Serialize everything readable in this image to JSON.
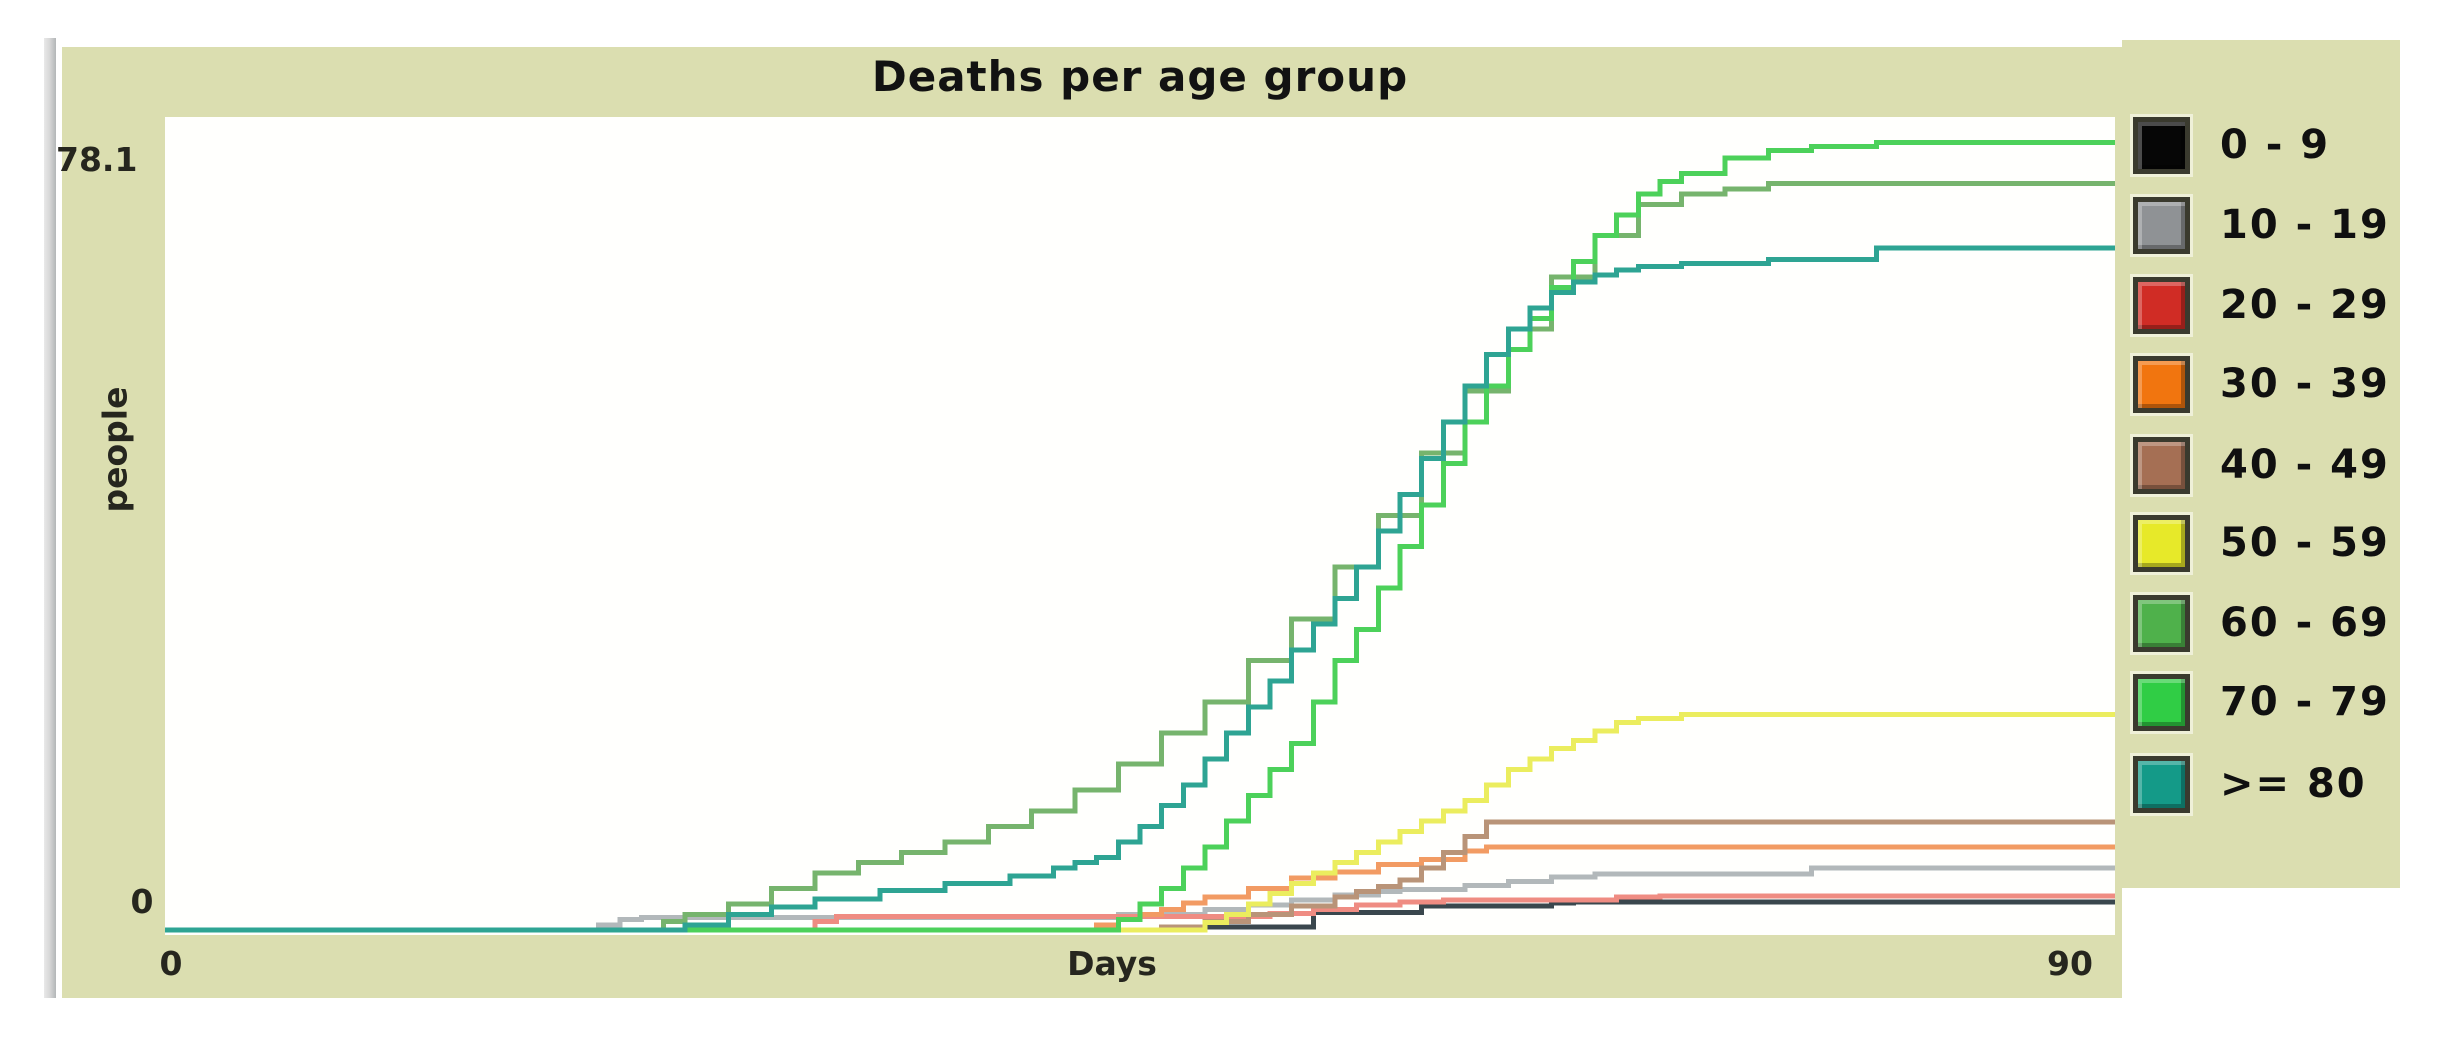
{
  "accent": {
    "panel_bg": "#dbdeb0",
    "plot_bg": "#fffffd",
    "scrollbar_gray": "#c6c8ca",
    "text_color": "#1a1a1a"
  },
  "chart_data": {
    "type": "line",
    "title": "Deaths per age group",
    "xlabel": "Days",
    "ylabel": "people",
    "xlim": [
      0,
      90
    ],
    "ylim": [
      0,
      78.1
    ],
    "x_axis": {
      "min_label": "0",
      "max_label": "90"
    },
    "y_axis": {
      "min_label": "0",
      "max_label": "78.1"
    },
    "grid": false,
    "legend_position": "right",
    "line_style": "step-after",
    "series": [
      {
        "name": "0 - 9",
        "swatch": "#060606",
        "line": "#3a474d",
        "points": [
          [
            0,
            0
          ],
          [
            48,
            0.3
          ],
          [
            53,
            1.7
          ],
          [
            58,
            2.3
          ],
          [
            64,
            2.6
          ],
          [
            65,
            2.7
          ],
          [
            90,
            2.7
          ]
        ]
      },
      {
        "name": "10 - 19",
        "swatch": "#8f9295",
        "line": "#b2b8ba",
        "points": [
          [
            0,
            0
          ],
          [
            20,
            0.5
          ],
          [
            21,
            1
          ],
          [
            22,
            1.2
          ],
          [
            44,
            1.5
          ],
          [
            48,
            2
          ],
          [
            50,
            2.4
          ],
          [
            52,
            2.9
          ],
          [
            54,
            3.4
          ],
          [
            56,
            3.7
          ],
          [
            57,
            3.9
          ],
          [
            60,
            4.3
          ],
          [
            62,
            4.7
          ],
          [
            64,
            5.1
          ],
          [
            66,
            5.4
          ],
          [
            76,
            6
          ],
          [
            90,
            6
          ]
        ]
      },
      {
        "name": "20 - 29",
        "swatch": "#d02c25",
        "line": "#ef8c82",
        "points": [
          [
            0,
            0
          ],
          [
            30,
            0.8
          ],
          [
            31,
            1.3
          ],
          [
            51,
            1.6
          ],
          [
            53,
            2
          ],
          [
            55,
            2.4
          ],
          [
            57,
            2.7
          ],
          [
            59,
            2.9
          ],
          [
            67,
            3.2
          ],
          [
            69,
            3.3
          ],
          [
            90,
            3.3
          ]
        ]
      },
      {
        "name": "30 - 39",
        "swatch": "#f1750f",
        "line": "#f29b63",
        "points": [
          [
            0,
            0
          ],
          [
            43,
            0.5
          ],
          [
            44,
            1
          ],
          [
            45,
            1.5
          ],
          [
            46,
            2
          ],
          [
            47,
            2.6
          ],
          [
            48,
            3.2
          ],
          [
            50,
            4
          ],
          [
            52,
            5
          ],
          [
            54,
            5.6
          ],
          [
            56,
            6.3
          ],
          [
            58,
            6.8
          ],
          [
            60,
            7.6
          ],
          [
            61,
            8
          ],
          [
            90,
            8
          ]
        ]
      },
      {
        "name": "40 - 49",
        "swatch": "#a56f54",
        "line": "#b99478",
        "points": [
          [
            0,
            0
          ],
          [
            46,
            0.3
          ],
          [
            48,
            0.8
          ],
          [
            50,
            1.5
          ],
          [
            52,
            2.3
          ],
          [
            54,
            3.2
          ],
          [
            55,
            3.7
          ],
          [
            56,
            4.2
          ],
          [
            57,
            4.8
          ],
          [
            58,
            6
          ],
          [
            59,
            7.5
          ],
          [
            60,
            9
          ],
          [
            61,
            10.4
          ],
          [
            90,
            10.4
          ]
        ]
      },
      {
        "name": "50 - 59",
        "swatch": "#e7e929",
        "line": "#ebed5e",
        "points": [
          [
            0,
            0
          ],
          [
            48,
            0.7
          ],
          [
            49,
            1.5
          ],
          [
            50,
            2.5
          ],
          [
            51,
            3.5
          ],
          [
            52,
            4.5
          ],
          [
            53,
            5.5
          ],
          [
            54,
            6.5
          ],
          [
            55,
            7.5
          ],
          [
            56,
            8.5
          ],
          [
            57,
            9.5
          ],
          [
            58,
            10.5
          ],
          [
            59,
            11.5
          ],
          [
            60,
            12.5
          ],
          [
            61,
            14
          ],
          [
            62,
            15.5
          ],
          [
            63,
            16.5
          ],
          [
            64,
            17.5
          ],
          [
            65,
            18.3
          ],
          [
            66,
            19.2
          ],
          [
            67,
            20
          ],
          [
            68,
            20.4
          ],
          [
            70,
            20.8
          ],
          [
            90,
            20.8
          ]
        ]
      },
      {
        "name": "60 - 69",
        "swatch": "#4fb14b",
        "line": "#76b46d",
        "points": [
          [
            0,
            0
          ],
          [
            23,
            0.8
          ],
          [
            24,
            1.5
          ],
          [
            26,
            2.5
          ],
          [
            28,
            4
          ],
          [
            30,
            5.5
          ],
          [
            32,
            6.5
          ],
          [
            34,
            7.5
          ],
          [
            36,
            8.5
          ],
          [
            38,
            10
          ],
          [
            40,
            11.5
          ],
          [
            42,
            13.5
          ],
          [
            44,
            16
          ],
          [
            46,
            19
          ],
          [
            48,
            22
          ],
          [
            50,
            26
          ],
          [
            52,
            30
          ],
          [
            54,
            35
          ],
          [
            56,
            40
          ],
          [
            58,
            46
          ],
          [
            60,
            52
          ],
          [
            62,
            58
          ],
          [
            64,
            63
          ],
          [
            66,
            67
          ],
          [
            68,
            70
          ],
          [
            70,
            71
          ],
          [
            72,
            71.5
          ],
          [
            74,
            72
          ],
          [
            90,
            72
          ]
        ]
      },
      {
        "name": "70 - 79",
        "swatch": "#30cd45",
        "line": "#4cd15a",
        "points": [
          [
            0,
            0
          ],
          [
            44,
            1
          ],
          [
            45,
            2.5
          ],
          [
            46,
            4
          ],
          [
            47,
            6
          ],
          [
            48,
            8
          ],
          [
            49,
            10.5
          ],
          [
            50,
            13
          ],
          [
            51,
            15.5
          ],
          [
            52,
            18
          ],
          [
            53,
            22
          ],
          [
            54,
            26
          ],
          [
            55,
            29
          ],
          [
            56,
            33
          ],
          [
            57,
            37
          ],
          [
            58,
            41
          ],
          [
            59,
            45
          ],
          [
            60,
            49
          ],
          [
            61,
            52.5
          ],
          [
            62,
            56
          ],
          [
            63,
            59
          ],
          [
            64,
            62
          ],
          [
            65,
            64.5
          ],
          [
            66,
            67
          ],
          [
            67,
            69
          ],
          [
            68,
            71
          ],
          [
            69,
            72.2
          ],
          [
            70,
            73
          ],
          [
            72,
            74.5
          ],
          [
            74,
            75.2
          ],
          [
            76,
            75.6
          ],
          [
            79,
            76
          ],
          [
            90,
            76
          ]
        ]
      },
      {
        "name": ">= 80",
        "swatch": "#149a88",
        "line": "#2ea493",
        "points": [
          [
            0,
            0
          ],
          [
            24,
            0.5
          ],
          [
            26,
            1.5
          ],
          [
            28,
            2.2
          ],
          [
            30,
            3
          ],
          [
            33,
            3.8
          ],
          [
            36,
            4.5
          ],
          [
            39,
            5.2
          ],
          [
            41,
            6
          ],
          [
            42,
            6.5
          ],
          [
            43,
            7
          ],
          [
            44,
            8.5
          ],
          [
            45,
            10
          ],
          [
            46,
            12
          ],
          [
            47,
            14
          ],
          [
            48,
            16.5
          ],
          [
            49,
            19
          ],
          [
            50,
            21.5
          ],
          [
            51,
            24
          ],
          [
            52,
            27
          ],
          [
            53,
            29.5
          ],
          [
            54,
            32
          ],
          [
            55,
            35
          ],
          [
            56,
            38.5
          ],
          [
            57,
            42
          ],
          [
            58,
            45.5
          ],
          [
            59,
            49
          ],
          [
            60,
            52.5
          ],
          [
            61,
            55.5
          ],
          [
            62,
            58
          ],
          [
            63,
            60
          ],
          [
            64,
            61.5
          ],
          [
            65,
            62.5
          ],
          [
            66,
            63.2
          ],
          [
            67,
            63.7
          ],
          [
            68,
            64
          ],
          [
            70,
            64.3
          ],
          [
            74,
            64.7
          ],
          [
            79,
            65.8
          ],
          [
            90,
            65.8
          ]
        ]
      }
    ]
  }
}
